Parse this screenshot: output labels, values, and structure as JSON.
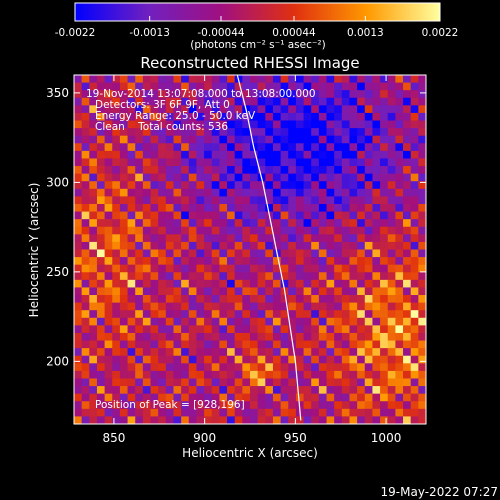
{
  "timestamp": "19-May-2022 07:27",
  "chart_data": {
    "type": "heatmap",
    "title": "Reconstructed RHESSI Image",
    "xlabel": "Heliocentric X (arcsec)",
    "ylabel": "Heliocentric Y (arcsec)",
    "xlim": [
      828,
      1022
    ],
    "ylim": [
      165,
      360
    ],
    "xticks": [
      850,
      900,
      950,
      1000
    ],
    "yticks": [
      200,
      250,
      300,
      350
    ],
    "colorbar": {
      "min": -0.0022,
      "max": 0.0022,
      "ticks": [
        -0.0022,
        -0.0013,
        -0.00044,
        0.00044,
        0.0013,
        0.0022
      ],
      "tick_labels": [
        "-0.0022",
        "-0.0013",
        "-0.00044",
        "0.00044",
        "0.0013",
        "0.0022"
      ],
      "unit_label": "(photons cm⁻² s⁻¹ asec⁻²)",
      "colors": [
        "#0000ff",
        "#7020c0",
        "#a01080",
        "#e03010",
        "#ff9900",
        "#ffffa0"
      ]
    },
    "annotations": [
      "19-Nov-2014 13:07:08.000 to 13:08:00.000",
      "Detectors: 3F 6F 9F, Att 0",
      "Energy Range: 25.0 - 50.0 keV",
      "Clean    Total counts: 536"
    ],
    "peak_label": "Position of Peak = [928,196]",
    "peak": [
      928,
      196
    ],
    "limb_curve": {
      "x": [
        918,
        923,
        927,
        932,
        936,
        940,
        944,
        947,
        950,
        953
      ],
      "y": [
        360,
        340,
        320,
        300,
        280,
        260,
        240,
        220,
        200,
        167
      ]
    },
    "colors": {
      "background": "#000000",
      "text": "#ffffff",
      "limb": "#ffffff"
    }
  }
}
